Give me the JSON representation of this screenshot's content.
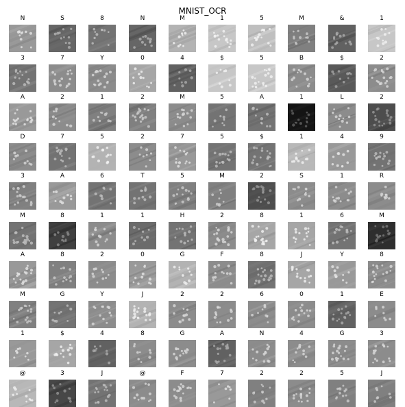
{
  "figure": {
    "title": "MNIST_OCR",
    "labels": [
      [
        "N",
        "S",
        "8",
        "N",
        "M",
        "1",
        "5",
        "M",
        "&",
        "1"
      ],
      [
        "3",
        "7",
        "Y",
        "0",
        "4",
        "$",
        "5",
        "B",
        "$",
        "2"
      ],
      [
        "A",
        "2",
        "1",
        "2",
        "M",
        "5",
        "A",
        "1",
        "L",
        "2"
      ],
      [
        "D",
        "7",
        "5",
        "2",
        "7",
        "5",
        "$",
        "1",
        "4",
        "9"
      ],
      [
        "3",
        "A",
        "6",
        "T",
        "5",
        "M",
        "2",
        "S",
        "1",
        "R"
      ],
      [
        "M",
        "8",
        "1",
        "1",
        "H",
        "2",
        "8",
        "1",
        "6",
        "M"
      ],
      [
        "A",
        "8",
        "2",
        "0",
        "G",
        "F",
        "8",
        "J",
        "Y",
        "8"
      ],
      [
        "M",
        "G",
        "Y",
        "J",
        "2",
        "2",
        "6",
        "0",
        "1",
        "E"
      ],
      [
        "1",
        "$",
        "4",
        "8",
        "G",
        "A",
        "N",
        "4",
        "G",
        "3"
      ],
      [
        "@",
        "3",
        "J",
        "@",
        "F",
        "7",
        "2",
        "2",
        "5",
        "J"
      ]
    ],
    "tile_gray": [
      [
        0.6,
        0.4,
        0.45,
        0.4,
        0.7,
        0.78,
        0.75,
        0.5,
        0.38,
        0.78
      ],
      [
        0.45,
        0.55,
        0.55,
        0.65,
        0.38,
        0.78,
        0.78,
        0.55,
        0.35,
        0.55
      ],
      [
        0.6,
        0.55,
        0.5,
        0.5,
        0.55,
        0.45,
        0.45,
        0.08,
        0.55,
        0.3
      ],
      [
        0.55,
        0.45,
        0.7,
        0.55,
        0.6,
        0.45,
        0.45,
        0.72,
        0.6,
        0.45
      ],
      [
        0.5,
        0.6,
        0.45,
        0.45,
        0.5,
        0.5,
        0.3,
        0.55,
        0.55,
        0.55
      ],
      [
        0.45,
        0.25,
        0.55,
        0.42,
        0.45,
        0.55,
        0.65,
        0.65,
        0.45,
        0.18
      ],
      [
        0.6,
        0.5,
        0.55,
        0.6,
        0.7,
        0.55,
        0.45,
        0.65,
        0.6,
        0.55
      ],
      [
        0.5,
        0.45,
        0.55,
        0.7,
        0.55,
        0.55,
        0.55,
        0.55,
        0.38,
        0.55
      ],
      [
        0.6,
        0.65,
        0.38,
        0.55,
        0.55,
        0.38,
        0.55,
        0.55,
        0.55,
        0.55
      ],
      [
        0.72,
        0.28,
        0.45,
        0.55,
        0.55,
        0.6,
        0.5,
        0.55,
        0.5,
        0.5
      ]
    ]
  }
}
